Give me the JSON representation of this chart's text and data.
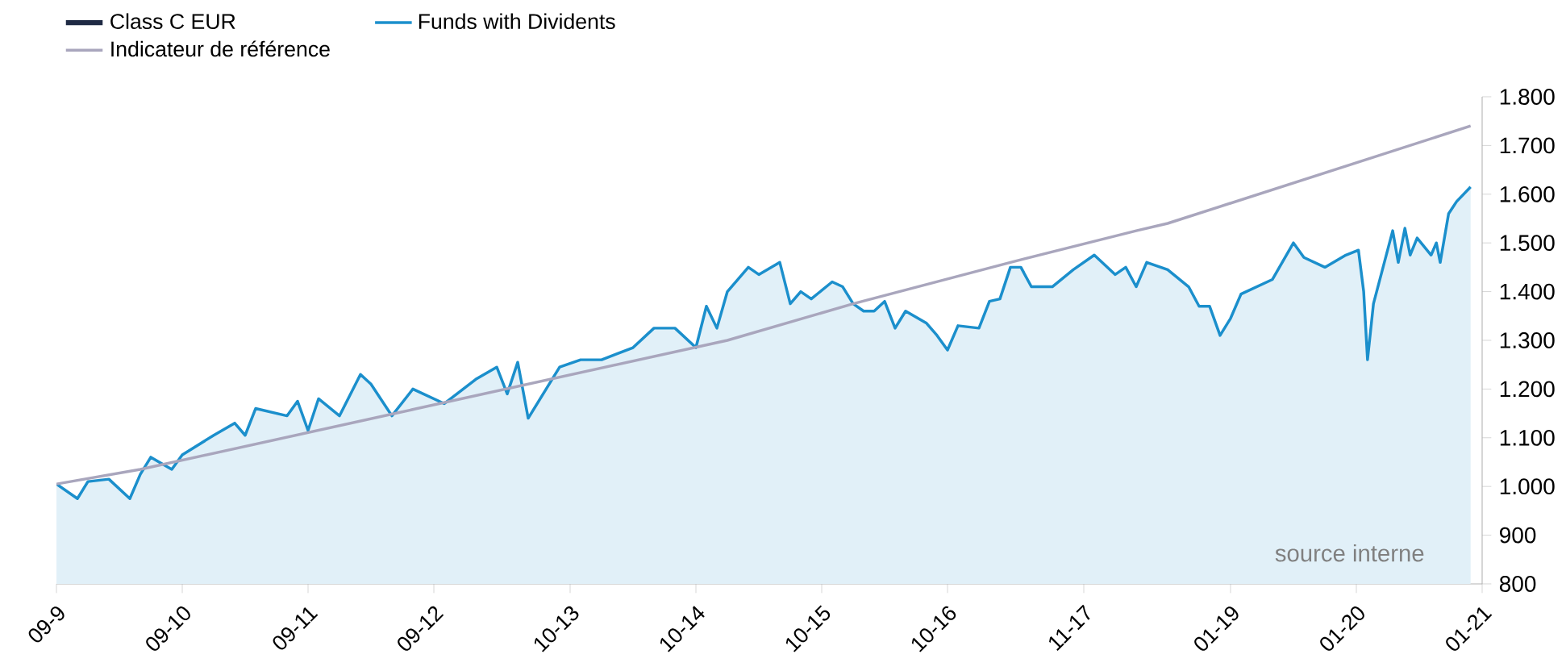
{
  "chart_data": {
    "type": "line",
    "xlim": [
      "2009-09",
      "2021-01"
    ],
    "xticks": [
      {
        "value": "2009-09",
        "label": "09-9"
      },
      {
        "value": "2010-09",
        "label": "09-10"
      },
      {
        "value": "2011-09",
        "label": "09-11"
      },
      {
        "value": "2012-09",
        "label": "09-12"
      },
      {
        "value": "2013-10",
        "label": "10-13"
      },
      {
        "value": "2014-10",
        "label": "10-14"
      },
      {
        "value": "2015-10",
        "label": "10-15"
      },
      {
        "value": "2016-10",
        "label": "10-16"
      },
      {
        "value": "2017-11",
        "label": "11-17"
      },
      {
        "value": "2019-01",
        "label": "01-19"
      },
      {
        "value": "2020-01",
        "label": "01-20"
      },
      {
        "value": "2021-01",
        "label": "01-21"
      }
    ],
    "ylim": [
      800,
      1800
    ],
    "yticks": [
      800,
      900,
      {
        "value": 1000,
        "label": "1.000"
      },
      {
        "value": 1100,
        "label": "1.100"
      },
      {
        "value": 1200,
        "label": "1.200"
      },
      {
        "value": 1300,
        "label": "1.300"
      },
      {
        "value": 1400,
        "label": "1.400"
      },
      {
        "value": 1500,
        "label": "1.500"
      },
      {
        "value": 1600,
        "label": "1.600"
      },
      {
        "value": 1700,
        "label": "1.700"
      },
      {
        "value": 1800,
        "label": "1.800"
      }
    ],
    "legend": "top left",
    "annotations": [
      "source interne"
    ],
    "series": [
      {
        "name": "Class C EUR",
        "color": "#1f2a44",
        "values": [
          null
        ]
      },
      {
        "name": "Funds with Dividents",
        "color": "#1b8fcc",
        "type": "area",
        "x": [
          "2009-09",
          "2009-11",
          "2009-12",
          "2010-02",
          "2010-04",
          "2010-05",
          "2010-06",
          "2010-08",
          "2010-09",
          "2010-12",
          "2011-02",
          "2011-03",
          "2011-04",
          "2011-07",
          "2011-08",
          "2011-09",
          "2011-10",
          "2011-12",
          "2012-02",
          "2012-03",
          "2012-05",
          "2012-07",
          "2012-10",
          "2013-01",
          "2013-03",
          "2013-04",
          "2013-05",
          "2013-06",
          "2013-09",
          "2013-11",
          "2014-01",
          "2014-04",
          "2014-06",
          "2014-08",
          "2014-10",
          "2014-11",
          "2014-12",
          "2015-01",
          "2015-03",
          "2015-04",
          "2015-06",
          "2015-07",
          "2015-08",
          "2015-09",
          "2015-11",
          "2015-12",
          "2016-01",
          "2016-02",
          "2016-03",
          "2016-04",
          "2016-05",
          "2016-06",
          "2016-08",
          "2016-09",
          "2016-10",
          "2016-11",
          "2017-01",
          "2017-02",
          "2017-03",
          "2017-04",
          "2017-05",
          "2017-06",
          "2017-08",
          "2017-10",
          "2017-12",
          "2018-02",
          "2018-03",
          "2018-04",
          "2018-05",
          "2018-07",
          "2018-09",
          "2018-10",
          "2018-11",
          "2018-12",
          "2019-01",
          "2019-02",
          "2019-05",
          "2019-07",
          "2019-08",
          "2019-10",
          "2019-12",
          "2020-01-07",
          "2020-01-22",
          "2020-02-03",
          "2020-02-20",
          "2020-04-15",
          "2020-05-01",
          "2020-05-20",
          "2020-06-05",
          "2020-06-25",
          "2020-08-05",
          "2020-08-20",
          "2020-09-01",
          "2020-09-25",
          "2020-10-18",
          "2020-11-28"
        ],
        "values": [
          1005,
          975,
          1010,
          1015,
          975,
          1025,
          1060,
          1035,
          1065,
          1105,
          1130,
          1105,
          1160,
          1145,
          1175,
          1115,
          1180,
          1145,
          1230,
          1210,
          1145,
          1200,
          1170,
          1220,
          1245,
          1190,
          1255,
          1140,
          1245,
          1260,
          1260,
          1285,
          1325,
          1325,
          1285,
          1370,
          1325,
          1400,
          1450,
          1435,
          1460,
          1375,
          1400,
          1385,
          1420,
          1410,
          1375,
          1360,
          1360,
          1380,
          1325,
          1360,
          1335,
          1310,
          1280,
          1330,
          1325,
          1380,
          1385,
          1450,
          1450,
          1410,
          1410,
          1445,
          1475,
          1435,
          1450,
          1410,
          1460,
          1445,
          1410,
          1370,
          1370,
          1310,
          1345,
          1395,
          1425,
          1500,
          1470,
          1450,
          1475,
          1485,
          1400,
          1260,
          1375,
          1525,
          1460,
          1530,
          1475,
          1510,
          1475,
          1500,
          1460,
          1560,
          1585,
          1615
        ]
      },
      {
        "name": "Indicateur de référence",
        "color": "#a9a6bd",
        "x": [
          "2009-09",
          "2010-05",
          "2015-01",
          "2016-01",
          "2017-04",
          "2018-04",
          "2018-07",
          "2020-11-28"
        ],
        "values": [
          1005,
          1035,
          1300,
          1375,
          1460,
          1525,
          1540,
          1740
        ]
      }
    ]
  }
}
